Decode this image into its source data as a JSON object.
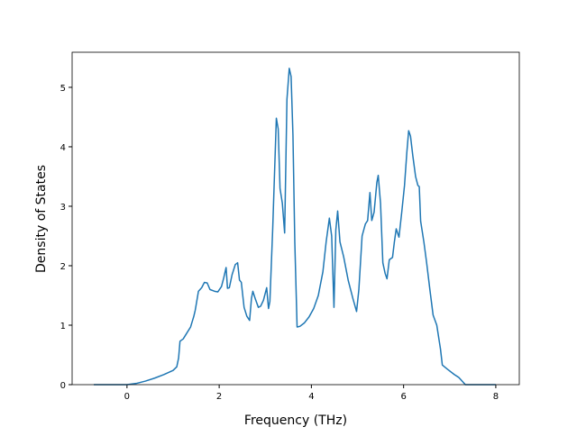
{
  "chart_data": {
    "type": "line",
    "xlabel": "Frequency (THz)",
    "ylabel": "Density of States",
    "xlim": [
      -1.19,
      8.51
    ],
    "ylim": [
      0,
      5.59
    ],
    "xticks": [
      0,
      2,
      4,
      6,
      8
    ],
    "yticks": [
      0,
      1,
      2,
      3,
      4,
      5
    ],
    "x": [
      -0.72,
      0,
      0.2,
      0.4,
      0.6,
      0.8,
      1.0,
      1.08,
      1.12,
      1.15,
      1.22,
      1.3,
      1.38,
      1.45,
      1.48,
      1.55,
      1.62,
      1.68,
      1.74,
      1.8,
      1.9,
      1.97,
      2.05,
      2.1,
      2.15,
      2.18,
      2.22,
      2.28,
      2.35,
      2.4,
      2.44,
      2.48,
      2.54,
      2.6,
      2.66,
      2.7,
      2.73,
      2.78,
      2.85,
      2.9,
      2.96,
      3.03,
      3.07,
      3.1,
      3.16,
      3.24,
      3.28,
      3.32,
      3.37,
      3.42,
      3.47,
      3.52,
      3.56,
      3.6,
      3.64,
      3.69,
      3.75,
      3.85,
      3.95,
      4.05,
      4.15,
      4.25,
      4.32,
      4.39,
      4.44,
      4.49,
      4.53,
      4.57,
      4.62,
      4.7,
      4.8,
      4.9,
      4.98,
      5.03,
      5.1,
      5.17,
      5.22,
      5.27,
      5.31,
      5.36,
      5.42,
      5.45,
      5.5,
      5.55,
      5.6,
      5.64,
      5.69,
      5.76,
      5.8,
      5.84,
      5.9,
      5.96,
      6.02,
      6.07,
      6.11,
      6.15,
      6.2,
      6.26,
      6.31,
      6.34,
      6.37,
      6.44,
      6.5,
      6.57,
      6.64,
      6.72,
      6.8,
      6.84,
      6.95,
      7.1,
      7.2,
      7.34,
      7.6,
      8.0
    ],
    "series": [
      {
        "color": "#1f77b4",
        "values": [
          0,
          0,
          0.02,
          0.06,
          0.11,
          0.17,
          0.24,
          0.3,
          0.45,
          0.73,
          0.77,
          0.87,
          0.97,
          1.15,
          1.25,
          1.57,
          1.63,
          1.72,
          1.71,
          1.6,
          1.57,
          1.56,
          1.65,
          1.8,
          1.97,
          1.62,
          1.63,
          1.85,
          2.02,
          2.05,
          1.76,
          1.72,
          1.3,
          1.15,
          1.08,
          1.45,
          1.57,
          1.45,
          1.3,
          1.32,
          1.42,
          1.63,
          1.28,
          1.4,
          2.6,
          4.48,
          4.3,
          3.3,
          3.05,
          2.55,
          4.8,
          5.32,
          5.18,
          4.2,
          2.4,
          0.97,
          0.98,
          1.04,
          1.14,
          1.28,
          1.5,
          1.9,
          2.4,
          2.8,
          2.5,
          1.3,
          2.6,
          2.92,
          2.4,
          2.15,
          1.75,
          1.45,
          1.23,
          1.6,
          2.5,
          2.7,
          2.76,
          3.23,
          2.76,
          2.9,
          3.4,
          3.52,
          3.05,
          2.05,
          1.87,
          1.78,
          2.1,
          2.14,
          2.4,
          2.62,
          2.48,
          2.9,
          3.35,
          3.9,
          4.27,
          4.18,
          3.85,
          3.5,
          3.35,
          3.33,
          2.75,
          2.4,
          2.05,
          1.6,
          1.17,
          1.0,
          0.6,
          0.33,
          0.26,
          0.17,
          0.12,
          0,
          0,
          0
        ]
      }
    ]
  }
}
